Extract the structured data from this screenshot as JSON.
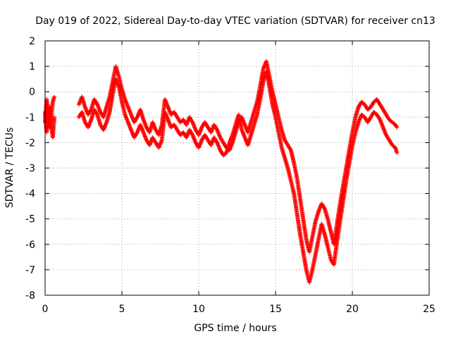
{
  "chart_data": {
    "type": "scatter",
    "title": "Day 019 of 2022, Sidereal Day-to-day VTEC variation (SDTVAR) for receiver cn13",
    "xlabel": "GPS time / hours",
    "ylabel": "SDTVAR / TECUs",
    "xlim": [
      0,
      25
    ],
    "ylim": [
      -8,
      2
    ],
    "xticks": [
      0,
      5,
      10,
      15,
      20,
      25
    ],
    "yticks": [
      -8,
      -7,
      -6,
      -5,
      -4,
      -3,
      -2,
      -1,
      0,
      1,
      2
    ],
    "grid": true,
    "marker": "+",
    "color": "#ff0000",
    "series": [
      {
        "x": [
          0.0,
          0.1,
          0.2,
          0.3,
          0.4,
          0.5,
          0.6,
          2.2,
          2.4,
          2.6,
          2.8,
          3.0,
          3.2,
          3.4,
          3.6,
          3.8,
          4.0,
          4.2,
          4.4,
          4.6,
          4.8,
          5.0,
          5.2,
          5.4,
          5.6,
          5.8,
          6.0,
          6.2,
          6.4,
          6.6,
          6.8,
          7.0,
          7.2,
          7.4,
          7.6,
          7.8,
          8.0,
          8.2,
          8.4,
          8.6,
          8.8,
          9.0,
          9.2,
          9.4,
          9.6,
          9.8,
          10.0,
          10.2,
          10.4,
          10.6,
          10.8,
          11.0,
          11.2,
          11.4,
          11.6,
          11.8,
          12.0,
          12.2,
          12.4,
          12.6,
          12.8,
          13.0,
          13.2,
          13.4,
          13.6,
          13.8,
          14.0,
          14.2,
          14.4,
          14.6,
          14.8,
          15.0,
          15.2,
          15.4,
          15.6,
          15.8,
          16.0,
          16.2,
          16.4,
          16.6,
          16.8,
          17.0,
          17.2,
          17.4,
          17.6,
          17.8,
          18.0,
          18.2,
          18.4,
          18.6,
          18.8,
          19.0,
          19.2,
          19.4,
          19.6,
          19.8,
          20.0,
          20.2,
          20.4,
          20.6,
          20.8,
          21.0,
          21.2,
          21.4,
          21.6,
          21.8,
          22.0,
          22.2,
          22.4,
          22.6,
          22.8,
          22.9
        ],
        "y": [
          -1.2,
          -0.3,
          -0.8,
          -1.4,
          -1.0,
          -0.4,
          -0.2,
          -0.5,
          -0.2,
          -0.6,
          -0.9,
          -0.7,
          -0.3,
          -0.5,
          -0.8,
          -1.0,
          -0.6,
          -0.2,
          0.4,
          1.0,
          0.6,
          0.1,
          -0.3,
          -0.6,
          -0.9,
          -1.2,
          -1.0,
          -0.7,
          -1.1,
          -1.4,
          -1.6,
          -1.2,
          -1.5,
          -1.7,
          -1.3,
          -0.3,
          -0.6,
          -0.9,
          -0.8,
          -1.0,
          -1.2,
          -1.1,
          -1.3,
          -1.0,
          -1.2,
          -1.5,
          -1.7,
          -1.4,
          -1.2,
          -1.4,
          -1.6,
          -1.3,
          -1.5,
          -1.8,
          -2.0,
          -2.2,
          -2.3,
          -2.0,
          -1.6,
          -1.2,
          -1.0,
          -1.3,
          -1.6,
          -1.2,
          -0.8,
          -0.4,
          0.2,
          0.9,
          1.2,
          0.6,
          0.0,
          -0.5,
          -1.0,
          -1.5,
          -1.9,
          -2.1,
          -2.3,
          -2.8,
          -3.4,
          -4.2,
          -5.0,
          -5.8,
          -6.3,
          -5.7,
          -5.1,
          -4.7,
          -4.4,
          -4.6,
          -5.0,
          -5.5,
          -6.0,
          -5.2,
          -4.4,
          -3.7,
          -3.0,
          -2.3,
          -1.6,
          -1.0,
          -0.6,
          -0.4,
          -0.5,
          -0.7,
          -0.6,
          -0.4,
          -0.3,
          -0.5,
          -0.7,
          -0.9,
          -1.1,
          -1.2,
          -1.3,
          -1.4
        ]
      },
      {
        "x": [
          0.0,
          0.1,
          0.2,
          0.3,
          0.4,
          0.5,
          0.6,
          2.2,
          2.4,
          2.6,
          2.8,
          3.0,
          3.2,
          3.4,
          3.6,
          3.8,
          4.0,
          4.2,
          4.4,
          4.6,
          4.8,
          5.0,
          5.2,
          5.4,
          5.6,
          5.8,
          6.0,
          6.2,
          6.4,
          6.6,
          6.8,
          7.0,
          7.2,
          7.4,
          7.6,
          7.8,
          8.0,
          8.2,
          8.4,
          8.6,
          8.8,
          9.0,
          9.2,
          9.4,
          9.6,
          9.8,
          10.0,
          10.2,
          10.4,
          10.6,
          10.8,
          11.0,
          11.2,
          11.4,
          11.6,
          11.8,
          12.0,
          12.2,
          12.4,
          12.6,
          12.8,
          13.0,
          13.2,
          13.4,
          13.6,
          13.8,
          14.0,
          14.2,
          14.4,
          14.6,
          14.8,
          15.0,
          15.2,
          15.4,
          15.6,
          15.8,
          16.0,
          16.2,
          16.4,
          16.6,
          16.8,
          17.0,
          17.2,
          17.4,
          17.6,
          17.8,
          18.0,
          18.2,
          18.4,
          18.6,
          18.8,
          19.0,
          19.2,
          19.4,
          19.6,
          19.8,
          20.0,
          20.2,
          20.4,
          20.6,
          20.8,
          21.0,
          21.2,
          21.4,
          21.6,
          21.8,
          22.0,
          22.2,
          22.4,
          22.6,
          22.8,
          22.9
        ],
        "y": [
          -0.8,
          -1.6,
          -1.1,
          -0.6,
          -1.3,
          -1.8,
          -1.0,
          -1.0,
          -0.8,
          -1.2,
          -1.4,
          -1.1,
          -0.7,
          -0.9,
          -1.3,
          -1.5,
          -1.2,
          -0.8,
          -0.1,
          0.5,
          0.2,
          -0.4,
          -0.9,
          -1.2,
          -1.5,
          -1.8,
          -1.6,
          -1.3,
          -1.6,
          -1.9,
          -2.1,
          -1.8,
          -2.0,
          -2.2,
          -1.9,
          -0.8,
          -1.1,
          -1.4,
          -1.3,
          -1.5,
          -1.7,
          -1.6,
          -1.8,
          -1.5,
          -1.7,
          -2.0,
          -2.2,
          -1.9,
          -1.7,
          -1.9,
          -2.1,
          -1.8,
          -2.0,
          -2.3,
          -2.5,
          -2.4,
          -2.0,
          -1.7,
          -1.3,
          -0.9,
          -1.5,
          -1.8,
          -2.1,
          -1.7,
          -1.3,
          -0.9,
          -0.3,
          0.4,
          0.8,
          0.2,
          -0.5,
          -1.0,
          -1.6,
          -2.2,
          -2.6,
          -3.0,
          -3.5,
          -4.0,
          -4.8,
          -5.6,
          -6.3,
          -7.0,
          -7.5,
          -7.0,
          -6.4,
          -5.8,
          -5.2,
          -5.6,
          -6.1,
          -6.6,
          -6.8,
          -5.9,
          -5.1,
          -4.3,
          -3.5,
          -2.8,
          -2.1,
          -1.6,
          -1.2,
          -0.9,
          -1.0,
          -1.2,
          -1.0,
          -0.8,
          -0.9,
          -1.1,
          -1.4,
          -1.7,
          -1.9,
          -2.1,
          -2.2,
          -2.4
        ]
      }
    ]
  }
}
